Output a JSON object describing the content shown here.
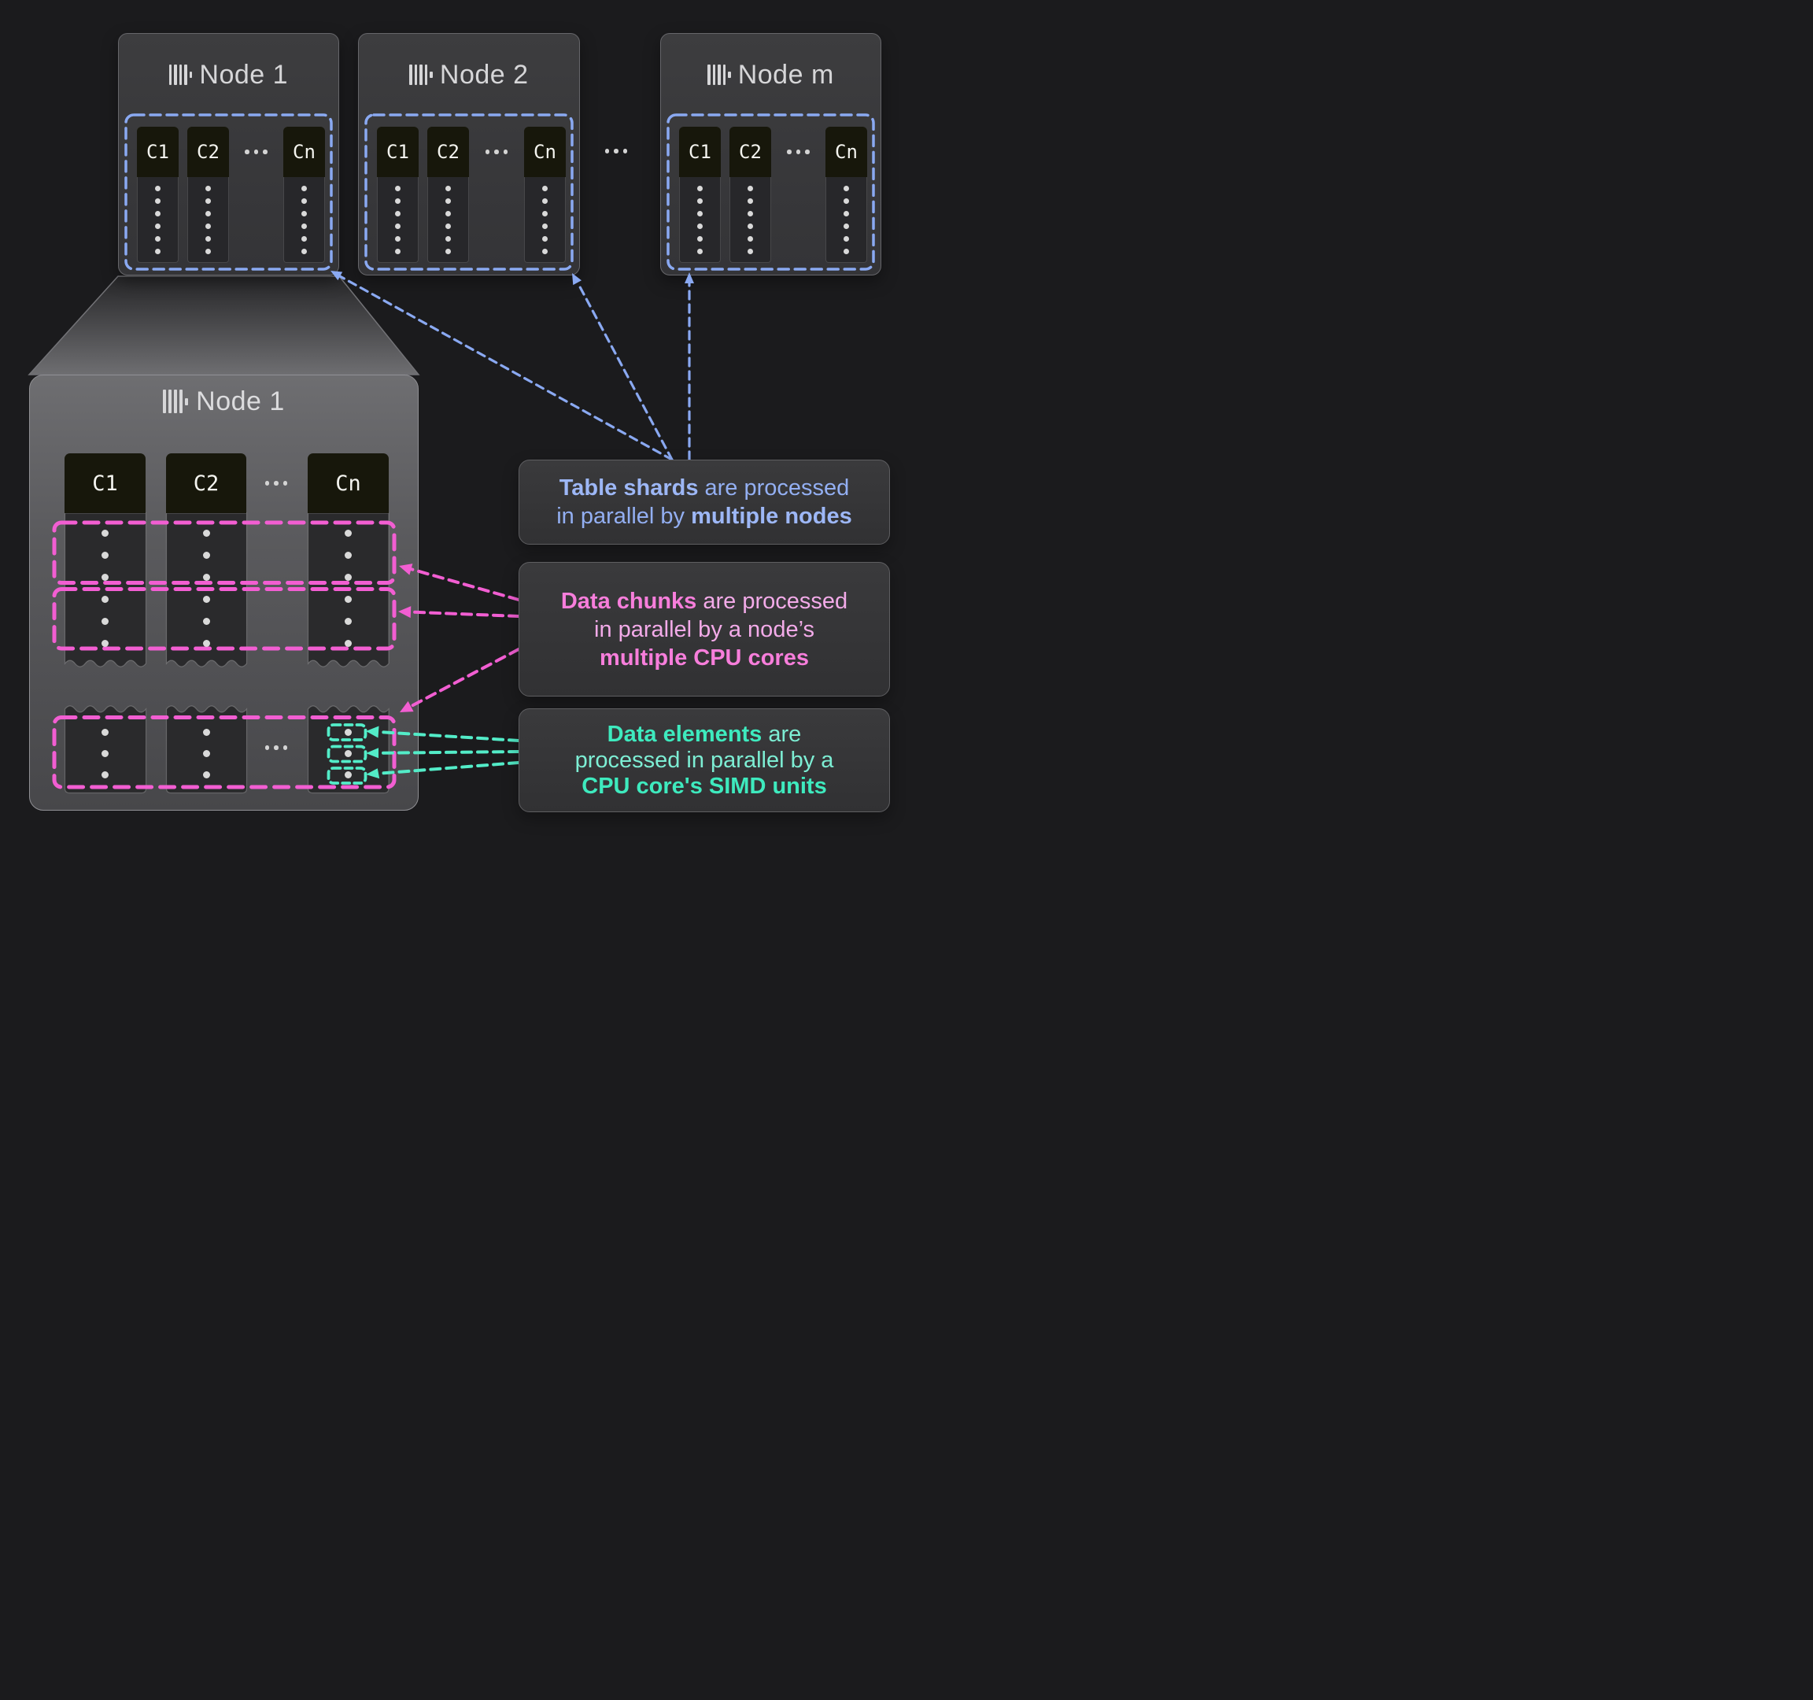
{
  "colors": {
    "background": "#1b1b1d",
    "shard-blue": "#8aa9f2",
    "chunk-pink": "#f25ed2",
    "element-teal": "#53ecc8"
  },
  "top_nodes": [
    {
      "title": "Node 1"
    },
    {
      "title": "Node 2"
    },
    {
      "title": "Node m"
    }
  ],
  "column_labels": [
    "C1",
    "C2",
    "Cn"
  ],
  "detail_node": {
    "title": "Node 1"
  },
  "callouts": {
    "shards": {
      "lines": [
        [
          {
            "t": "Table shards",
            "b": true
          },
          {
            "t": " are processed",
            "b": false
          }
        ],
        [
          {
            "t": "in parallel by ",
            "b": false
          },
          {
            "t": "multiple nodes",
            "b": true
          }
        ]
      ]
    },
    "chunks": {
      "lines": [
        [
          {
            "t": "Data chunks",
            "b": true
          },
          {
            "t": " are processed",
            "b": false
          }
        ],
        [
          {
            "t": "in parallel by a node’s",
            "b": false
          }
        ],
        [
          {
            "t": "multiple CPU cores",
            "b": true
          }
        ]
      ]
    },
    "elements": {
      "lines": [
        [
          {
            "t": "Data elements",
            "b": true
          },
          {
            "t": " are",
            "b": false
          }
        ],
        [
          {
            "t": "processed in parallel by a",
            "b": false
          }
        ],
        [
          {
            "t": "CPU core's SIMD units",
            "b": true
          }
        ]
      ]
    }
  }
}
